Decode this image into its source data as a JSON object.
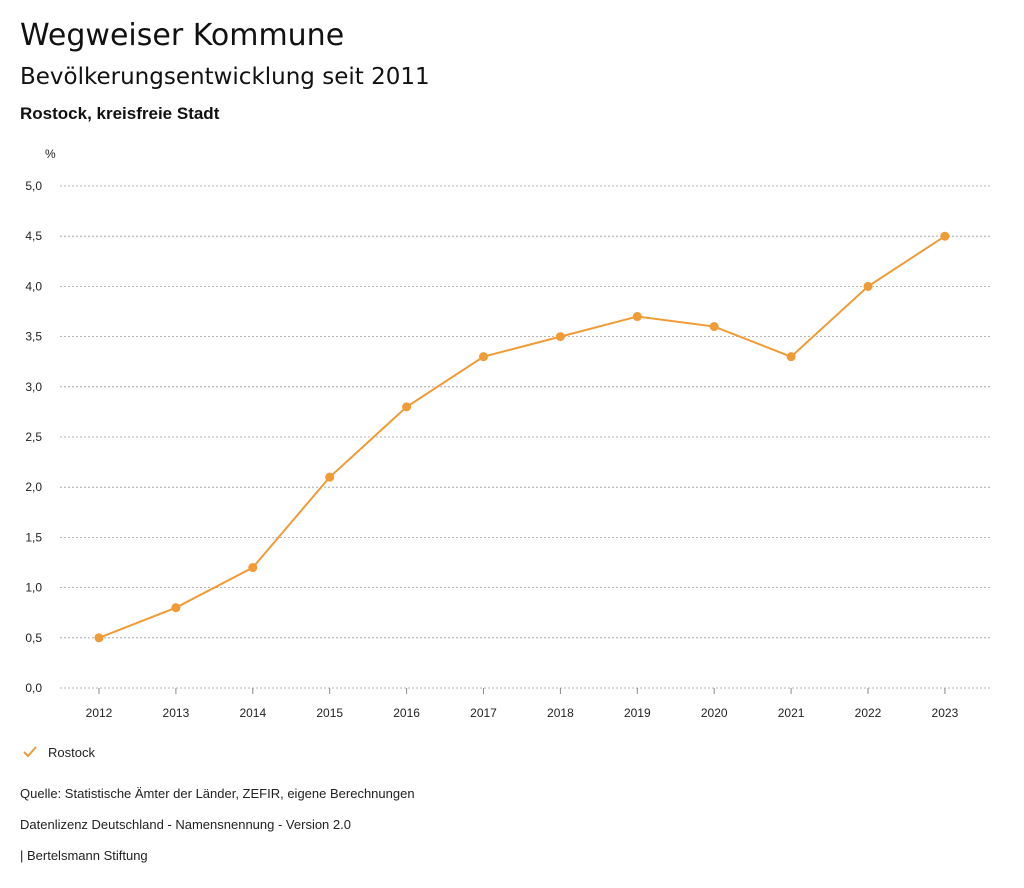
{
  "header": {
    "title": "Wegweiser Kommune",
    "subtitle": "Bevölkerungsentwicklung seit 2011",
    "region": "Rostock, kreisfreie Stadt"
  },
  "chart_data": {
    "type": "line",
    "ylabel": "%",
    "ylim": [
      0,
      5
    ],
    "yticks": [
      "0,0",
      "0,5",
      "1,0",
      "1,5",
      "2,0",
      "2,5",
      "3,0",
      "3,5",
      "4,0",
      "4,5",
      "5,0"
    ],
    "categories": [
      "2012",
      "2013",
      "2014",
      "2015",
      "2016",
      "2017",
      "2018",
      "2019",
      "2020",
      "2021",
      "2022",
      "2023"
    ],
    "series": [
      {
        "name": "Rostock",
        "values": [
          0.5,
          0.8,
          1.2,
          2.1,
          2.8,
          3.3,
          3.5,
          3.7,
          3.6,
          3.3,
          4.0,
          4.5
        ]
      }
    ],
    "grid": "horizontal-dotted",
    "color": "#f09b35"
  },
  "legend": {
    "label": "Rostock",
    "icon": "checkmark-icon"
  },
  "footer": {
    "source": "Quelle: Statistische Ämter der Länder, ZEFIR, eigene Berechnungen",
    "license": "Datenlizenz Deutschland - Namensnennung - Version 2.0",
    "publisher": "| Bertelsmann Stiftung"
  }
}
